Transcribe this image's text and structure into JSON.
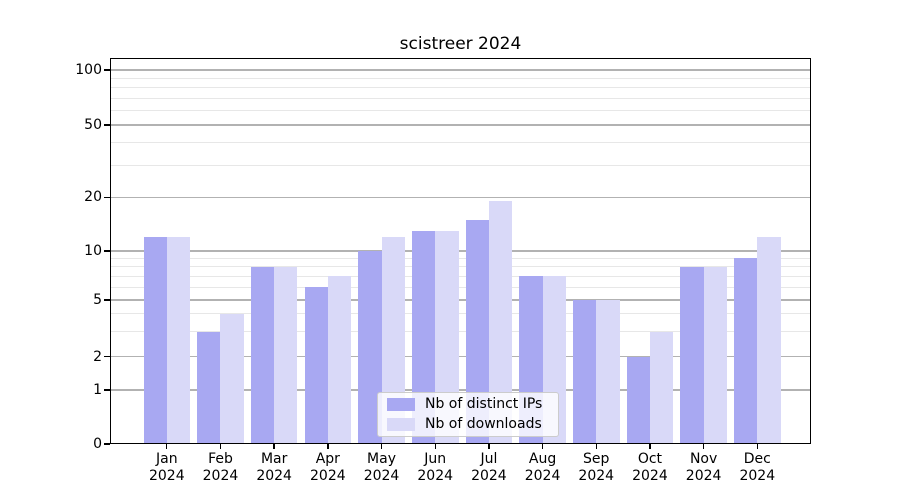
{
  "chart_data": {
    "type": "bar",
    "title": "scistreer 2024",
    "categories": [
      "Jan",
      "Feb",
      "Mar",
      "Apr",
      "May",
      "Jun",
      "Jul",
      "Aug",
      "Sep",
      "Oct",
      "Nov",
      "Dec"
    ],
    "year_label": "2024",
    "series": [
      {
        "name": "Nb of distinct IPs",
        "color": "#a8a8f2",
        "values": [
          12,
          3,
          8,
          6,
          10,
          13,
          15,
          7,
          5,
          2,
          8,
          9
        ]
      },
      {
        "name": "Nb of downloads",
        "color": "#d9d9f8",
        "values": [
          12,
          4,
          8,
          7,
          12,
          13,
          19,
          7,
          5,
          3,
          8,
          12
        ]
      }
    ],
    "yscale": "symlog",
    "ylim": [
      0,
      118
    ],
    "yticks": [
      0,
      1,
      2,
      5,
      10,
      20,
      50,
      100
    ],
    "minor_yticks": [
      3,
      4,
      6,
      7,
      8,
      9,
      30,
      40,
      60,
      70,
      80,
      90
    ],
    "grid": true,
    "legend_position": "lower-center-inside"
  },
  "colors": {
    "major_grid": "#b2b2b2",
    "minor_grid": "#e7e7e7",
    "spine": "#000000",
    "background": "#ffffff"
  }
}
